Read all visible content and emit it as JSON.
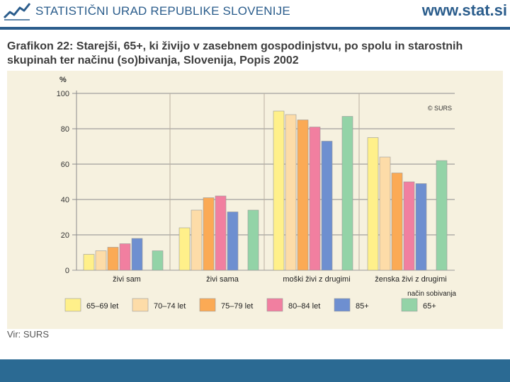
{
  "header": {
    "org_name": "STATISTIČNI URAD REPUBLIKE SLOVENIJE",
    "website": "www.stat.si"
  },
  "title": "Grafikon 22: Starejši, 65+, ki živijo v zasebnem gospodinjstvu, po spolu in starostnih\nskupinah ter načinu (so)bivanja, Slovenija, Popis 2002",
  "source": "Vir: SURS",
  "colors": {
    "brand": "#2b5d8c",
    "footer": "#2b6a93",
    "panel": "#f6f1df"
  },
  "chart_data": {
    "type": "bar",
    "title": "",
    "ylabel": "%",
    "xlabel": "način sobivanja",
    "copyright": "© SURS",
    "ylim": [
      0,
      100
    ],
    "yticks": [
      0,
      20,
      40,
      60,
      80,
      100
    ],
    "grid": true,
    "legend_position": "bottom",
    "categories": [
      "živi sam",
      "živi sama",
      "moški živi z drugimi",
      "ženska živi z drugimi"
    ],
    "series": [
      {
        "name": "65–69 let",
        "color": "#fff08a",
        "values": [
          9,
          24,
          90,
          75
        ]
      },
      {
        "name": "70–74 let",
        "color": "#fddca8",
        "values": [
          11,
          34,
          88,
          64
        ]
      },
      {
        "name": "75–79 let",
        "color": "#fbaa55",
        "values": [
          13,
          41,
          85,
          55
        ]
      },
      {
        "name": "80–84 let",
        "color": "#f17fa0",
        "values": [
          15,
          42,
          81,
          50
        ]
      },
      {
        "name": "85+",
        "color": "#6e8fd0",
        "values": [
          18,
          33,
          73,
          49
        ]
      },
      {
        "name": "65+",
        "color": "#93d3a7",
        "values": [
          11,
          34,
          87,
          62
        ]
      }
    ]
  }
}
